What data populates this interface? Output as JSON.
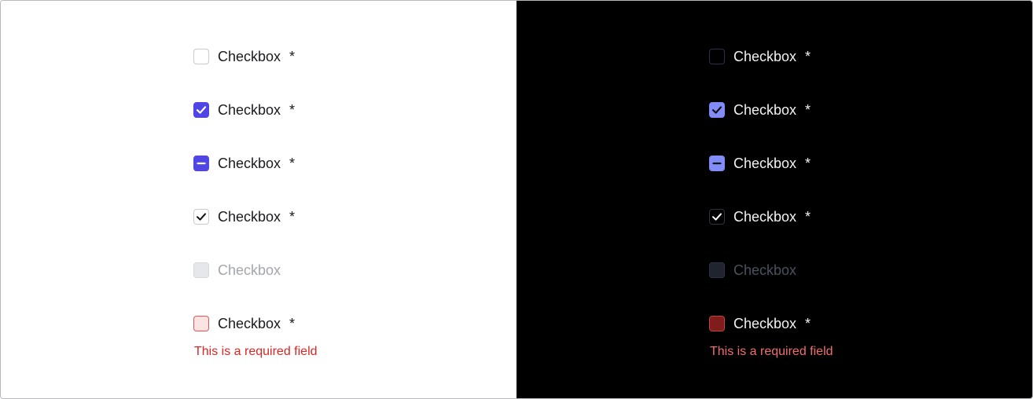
{
  "light": {
    "items": [
      {
        "label": "Checkbox",
        "required": "*",
        "state": "unchecked"
      },
      {
        "label": "Checkbox",
        "required": "*",
        "state": "checked"
      },
      {
        "label": "Checkbox",
        "required": "*",
        "state": "indeterminate"
      },
      {
        "label": "Checkbox",
        "required": "*",
        "state": "checkmark-only"
      },
      {
        "label": "Checkbox",
        "required": "",
        "state": "disabled"
      },
      {
        "label": "Checkbox",
        "required": "*",
        "state": "invalid"
      }
    ],
    "error_text": "This is a required field"
  },
  "dark": {
    "items": [
      {
        "label": "Checkbox",
        "required": "*",
        "state": "unchecked"
      },
      {
        "label": "Checkbox",
        "required": "*",
        "state": "checked"
      },
      {
        "label": "Checkbox",
        "required": "*",
        "state": "indeterminate"
      },
      {
        "label": "Checkbox",
        "required": "*",
        "state": "checkmark-only"
      },
      {
        "label": "Checkbox",
        "required": "",
        "state": "disabled"
      },
      {
        "label": "Checkbox",
        "required": "*",
        "state": "invalid"
      }
    ],
    "error_text": "This is a required field"
  },
  "colors": {
    "light_accent": "#5046e5",
    "dark_accent": "#818cf8",
    "light_error": "#dc2626",
    "dark_error": "#f16d6d"
  },
  "icons": {
    "checked": "check-icon",
    "indeterminate": "minus-icon",
    "checkmark-only": "check-icon"
  }
}
